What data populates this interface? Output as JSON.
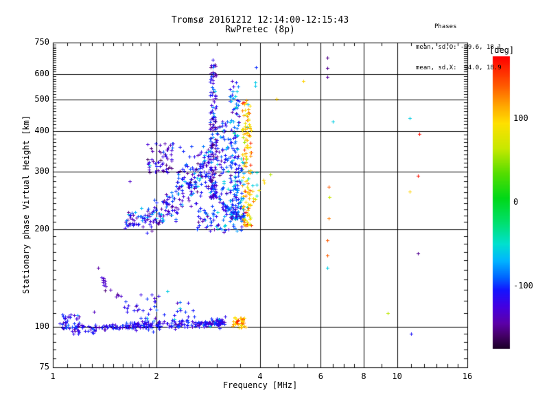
{
  "title": {
    "line1": "Tromsø 20161212 12:14:00-12:15:43",
    "line2": "RwPretec (8p)"
  },
  "stats": {
    "header": "Phases",
    "line_o": "mean, sd,O: -99.6, 18.1",
    "line_x": "mean, sd,X:  94.0, 18.9"
  },
  "chart_data": {
    "type": "scatter",
    "title": "Tromsø 20161212 12:14:00-12:15:43",
    "subtitle": "RwPretec (8p)",
    "xlabel": "Frequency [MHz]",
    "ylabel": "Stationary phase Virtual Height [km]",
    "x_scale": "log",
    "y_scale": "log",
    "xlim": [
      1,
      16
    ],
    "ylim": [
      75,
      750
    ],
    "x_ticks": [
      1,
      2,
      4,
      6,
      8,
      10,
      16
    ],
    "y_ticks": [
      75,
      100,
      200,
      300,
      400,
      500,
      600,
      750
    ],
    "x_minor": [
      1.1,
      1.2,
      1.3,
      1.4,
      1.5,
      1.6,
      1.7,
      1.8,
      1.9,
      2.33,
      2.66,
      3,
      3.5,
      4.5,
      5,
      5.5,
      6.5,
      7,
      7.5,
      9,
      11,
      12,
      13,
      14,
      15
    ],
    "y_minor": [
      80,
      85,
      90,
      95,
      110,
      120,
      130,
      140,
      150,
      160,
      170,
      180,
      190,
      210,
      220,
      230,
      240,
      250,
      260,
      270,
      280,
      290,
      310,
      320,
      330,
      340,
      350,
      360,
      370,
      380,
      390,
      410,
      420,
      430,
      440,
      450,
      460,
      470,
      480,
      490,
      510,
      520,
      530,
      540,
      550,
      560,
      570,
      580,
      590,
      610,
      620,
      630,
      640,
      650,
      660,
      670,
      680,
      690,
      700,
      710,
      720,
      730,
      740
    ],
    "grid_x": [
      2,
      4,
      6,
      8,
      10
    ],
    "grid_y": [
      100,
      200,
      300,
      400,
      500,
      600
    ],
    "colorbar": {
      "label": "[deg]",
      "unit": "deg",
      "ticks": [
        100,
        0,
        -100
      ],
      "range": [
        175,
        -175
      ],
      "stops": [
        [
          175,
          "#ff0000"
        ],
        [
          140,
          "#ff5a00"
        ],
        [
          115,
          "#ffaa00"
        ],
        [
          95,
          "#ffe000"
        ],
        [
          65,
          "#c8e800"
        ],
        [
          35,
          "#55dd00"
        ],
        [
          5,
          "#00d818"
        ],
        [
          -25,
          "#00e070"
        ],
        [
          -50,
          "#00e0d0"
        ],
        [
          -70,
          "#00b4ff"
        ],
        [
          -90,
          "#0064ff"
        ],
        [
          -105,
          "#1414ff"
        ],
        [
          -125,
          "#4400e0"
        ],
        [
          -145,
          "#5c00a8"
        ],
        [
          -160,
          "#440066"
        ],
        [
          -175,
          "#1c0028"
        ]
      ]
    },
    "marker": "plus",
    "seed": 9,
    "clusters": [
      {
        "kind": "blob",
        "name": "e-start",
        "f": [
          1.04,
          1.2
        ],
        "h": [
          95,
          110
        ],
        "n": 30,
        "deg": -112,
        "deg_sd": 14,
        "alts": [
          [
            -140,
            0.2
          ]
        ]
      },
      {
        "kind": "curve",
        "name": "e-main-trace",
        "path": [
          [
            1.08,
            100
          ],
          [
            1.3,
            98.5
          ],
          [
            1.55,
            100
          ],
          [
            1.8,
            101.5
          ],
          [
            2.05,
            101.5
          ],
          [
            2.35,
            102
          ],
          [
            2.65,
            102
          ],
          [
            2.95,
            102.5
          ],
          [
            3.14,
            104
          ]
        ],
        "n": 280,
        "h_sd": 1.6,
        "deg": -110,
        "deg_sd": 10,
        "alts": [
          [
            -138,
            0.22
          ],
          [
            -60,
            0.02
          ]
        ]
      },
      {
        "kind": "blob",
        "name": "e-above-1",
        "f": [
          1.6,
          2.16
        ],
        "h": [
          104,
          126
        ],
        "n": 26,
        "deg": -112,
        "deg_sd": 14,
        "alts": [
          [
            -140,
            0.25
          ]
        ]
      },
      {
        "kind": "blob",
        "name": "e-above-2",
        "f": [
          2.2,
          2.58
        ],
        "h": [
          104,
          122
        ],
        "n": 14,
        "deg": -106,
        "deg_sd": 12,
        "alts": [
          [
            -60,
            0.08
          ]
        ]
      },
      {
        "kind": "curve",
        "name": "purple-arc",
        "path": [
          [
            1.36,
            149
          ],
          [
            1.4,
            139
          ],
          [
            1.44,
            131
          ],
          [
            1.5,
            127
          ],
          [
            1.58,
            124
          ],
          [
            1.67,
            124
          ]
        ],
        "n": 16,
        "h_sd": 1.5,
        "deg": -138,
        "deg_sd": 8,
        "alts": []
      },
      {
        "kind": "blob",
        "name": "e-yellow-patch",
        "f": [
          3.28,
          3.63
        ],
        "h": [
          99,
          107
        ],
        "n": 42,
        "deg": 105,
        "deg_sd": 16,
        "alts": [
          [
            150,
            0.15
          ],
          [
            60,
            0.06
          ]
        ]
      },
      {
        "kind": "curve",
        "name": "f-leading-edge",
        "path": [
          [
            1.63,
            212
          ],
          [
            1.8,
            214
          ],
          [
            1.95,
            218
          ],
          [
            2.1,
            226
          ],
          [
            2.25,
            238
          ],
          [
            2.4,
            255
          ],
          [
            2.55,
            272
          ],
          [
            2.7,
            295
          ],
          [
            2.82,
            320
          ],
          [
            2.9,
            348
          ]
        ],
        "n": 240,
        "h_sd": 6,
        "h_sd_end": 26,
        "deg": -112,
        "deg_sd": 18,
        "alts": [
          [
            -60,
            0.07
          ],
          [
            -145,
            0.12
          ]
        ]
      },
      {
        "kind": "blob",
        "name": "left-cluster",
        "f": [
          1.88,
          2.24
        ],
        "h": [
          298,
          368
        ],
        "n": 55,
        "deg": -120,
        "deg_sd": 16,
        "alts": [
          [
            -148,
            0.3
          ],
          [
            -60,
            0.04
          ]
        ]
      },
      {
        "kind": "blob",
        "name": "bridge-sparse",
        "f": [
          2.26,
          2.72
        ],
        "h": [
          268,
          362
        ],
        "n": 26,
        "deg": -112,
        "deg_sd": 16,
        "alts": [
          [
            -145,
            0.2
          ]
        ]
      },
      {
        "kind": "column",
        "name": "spire-1",
        "f": [
          2.86,
          2.98
        ],
        "h": [
          250,
          645
        ],
        "n": 150,
        "bias": 1.5,
        "deg": -115,
        "deg_sd": 18,
        "alts": [
          [
            -148,
            0.25
          ],
          [
            -60,
            0.03
          ]
        ]
      },
      {
        "kind": "blob",
        "name": "spire-1-flank",
        "f": [
          2.98,
          3.24
        ],
        "h": [
          225,
          430
        ],
        "n": 75,
        "deg": -105,
        "deg_sd": 18,
        "alts": [
          [
            -140,
            0.15
          ],
          [
            -60,
            0.06
          ]
        ]
      },
      {
        "kind": "column",
        "name": "spire-2",
        "f": [
          3.26,
          3.48
        ],
        "h": [
          215,
          575
        ],
        "n": 140,
        "bias": 1.4,
        "deg": -92,
        "deg_sd": 18,
        "alts": [
          [
            -55,
            0.16
          ],
          [
            -140,
            0.08
          ]
        ]
      },
      {
        "kind": "column",
        "name": "yellow-column",
        "f": [
          3.54,
          3.77
        ],
        "h": [
          205,
          500
        ],
        "n": 135,
        "bias": 1.3,
        "deg": 100,
        "deg_sd": 15,
        "alts": [
          [
            140,
            0.15
          ],
          [
            168,
            0.05
          ],
          [
            55,
            0.07
          ],
          [
            -55,
            0.04
          ]
        ]
      },
      {
        "kind": "blob",
        "name": "yellow-right-stragglers",
        "f": [
          3.78,
          3.96
        ],
        "h": [
          235,
          305
        ],
        "n": 10,
        "deg": 95,
        "deg_sd": 25,
        "alts": [
          [
            -55,
            0.3
          ]
        ]
      },
      {
        "kind": "blob",
        "name": "column-gap",
        "f": [
          3.44,
          3.62
        ],
        "h": [
          212,
          330
        ],
        "n": 26,
        "deg": -80,
        "deg_sd": 25,
        "alts": [
          [
            -55,
            0.2
          ],
          [
            90,
            0.1
          ]
        ]
      },
      {
        "kind": "blob",
        "name": "bottom-fan",
        "f": [
          2.6,
          3.6
        ],
        "h": [
          196,
          238
        ],
        "n": 85,
        "deg": -105,
        "deg_sd": 18,
        "alts": [
          [
            -140,
            0.15
          ],
          [
            -60,
            0.08
          ]
        ]
      }
    ],
    "points": [
      [
        6.27,
        675,
        -152
      ],
      [
        6.27,
        625,
        -150
      ],
      [
        6.27,
        588,
        -148
      ],
      [
        5.35,
        570,
        100
      ],
      [
        6.5,
        428,
        -58
      ],
      [
        6.32,
        270,
        140
      ],
      [
        6.35,
        251,
        65
      ],
      [
        6.32,
        216,
        130
      ],
      [
        6.26,
        185,
        140
      ],
      [
        6.27,
        166,
        138
      ],
      [
        6.26,
        152,
        -58
      ],
      [
        10.9,
        438,
        -58
      ],
      [
        11.6,
        392,
        170
      ],
      [
        11.5,
        292,
        168
      ],
      [
        10.9,
        261,
        100
      ],
      [
        11.5,
        168,
        -150
      ],
      [
        9.4,
        110,
        62
      ],
      [
        11.0,
        95,
        -108
      ],
      [
        4.46,
        503,
        100
      ],
      [
        3.9,
        629,
        -100
      ],
      [
        3.88,
        566,
        -60
      ],
      [
        3.88,
        553,
        -62
      ],
      [
        4.1,
        283,
        100
      ],
      [
        4.12,
        278,
        98
      ],
      [
        4.28,
        294,
        60
      ],
      [
        1.67,
        280,
        -132
      ],
      [
        1.32,
        111,
        -136
      ],
      [
        2.15,
        129,
        -58
      ],
      [
        2.91,
        665,
        -115
      ],
      [
        2.93,
        640,
        -105
      ]
    ]
  },
  "colors": {
    "background": "#ffffff",
    "frame": "#000000",
    "text": "#000000"
  }
}
